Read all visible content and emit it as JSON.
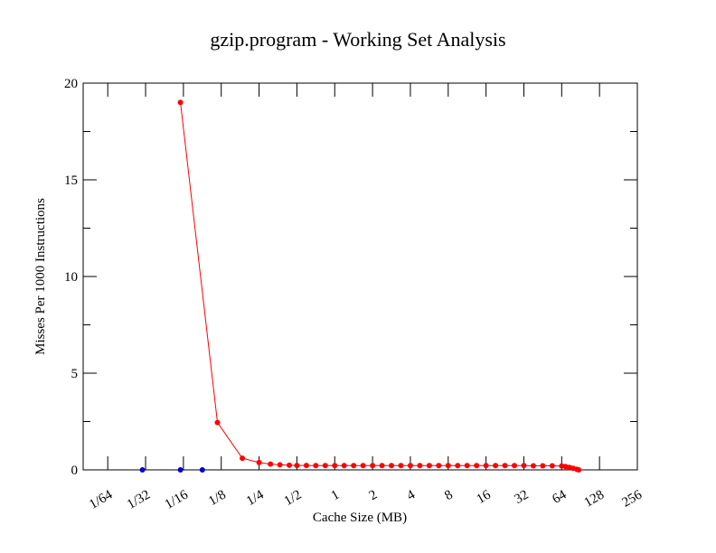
{
  "chart_data": {
    "type": "line",
    "title": "gzip.program - Working Set Analysis",
    "xlabel": "Cache Size (MB)",
    "ylabel": "Misses Per 1000 Instructions",
    "xscale": "log2",
    "xlim_log2": [
      -6.65,
      8
    ],
    "ylim": [
      0,
      20
    ],
    "xticks": [
      {
        "log2": -6,
        "label": "1/64"
      },
      {
        "log2": -5,
        "label": "1/32"
      },
      {
        "log2": -4,
        "label": "1/16"
      },
      {
        "log2": -3,
        "label": "1/8"
      },
      {
        "log2": -2,
        "label": "1/4"
      },
      {
        "log2": -1,
        "label": "1/2"
      },
      {
        "log2": 0,
        "label": "1"
      },
      {
        "log2": 1,
        "label": "2"
      },
      {
        "log2": 2,
        "label": "4"
      },
      {
        "log2": 3,
        "label": "8"
      },
      {
        "log2": 4,
        "label": "16"
      },
      {
        "log2": 5,
        "label": "32"
      },
      {
        "log2": 6,
        "label": "64"
      },
      {
        "log2": 7,
        "label": "128"
      },
      {
        "log2": 8,
        "label": "256"
      }
    ],
    "yticks": [
      {
        "v": 0,
        "label": "0"
      },
      {
        "v": 5,
        "label": "5"
      },
      {
        "v": 10,
        "label": "10"
      },
      {
        "v": 15,
        "label": "15"
      },
      {
        "v": 20,
        "label": "20"
      }
    ],
    "yminor": [
      2.5,
      7.5,
      12.5,
      17.5
    ],
    "grid": false,
    "series": [
      {
        "name": "red",
        "color": "#ff0000",
        "line": true,
        "x": [
          0.0592,
          0.1166,
          0.184,
          0.25,
          0.308,
          0.366,
          0.435,
          0.5,
          0.595,
          0.707,
          0.841,
          1,
          1.189,
          1.414,
          1.682,
          2,
          2.378,
          2.828,
          3.364,
          4,
          4.757,
          5.657,
          6.727,
          8,
          9.514,
          11.314,
          13.454,
          16,
          19.027,
          22.627,
          26.909,
          32,
          38.055,
          45.255,
          53.817,
          64,
          68.59,
          73.52,
          78.79,
          84.45,
          87.43
        ],
        "y": [
          19,
          2.45,
          0.6,
          0.38,
          0.3,
          0.26,
          0.24,
          0.23,
          0.23,
          0.22,
          0.22,
          0.22,
          0.22,
          0.22,
          0.22,
          0.22,
          0.22,
          0.22,
          0.22,
          0.22,
          0.22,
          0.22,
          0.22,
          0.22,
          0.22,
          0.22,
          0.22,
          0.22,
          0.22,
          0.22,
          0.22,
          0.22,
          0.21,
          0.21,
          0.21,
          0.2,
          0.17,
          0.13,
          0.08,
          0.03,
          0.0
        ]
      },
      {
        "name": "blue",
        "color": "#0000cc",
        "line": false,
        "x": [
          0.0295,
          0.0592,
          0.0884
        ],
        "y": [
          0,
          0,
          0
        ]
      }
    ]
  }
}
